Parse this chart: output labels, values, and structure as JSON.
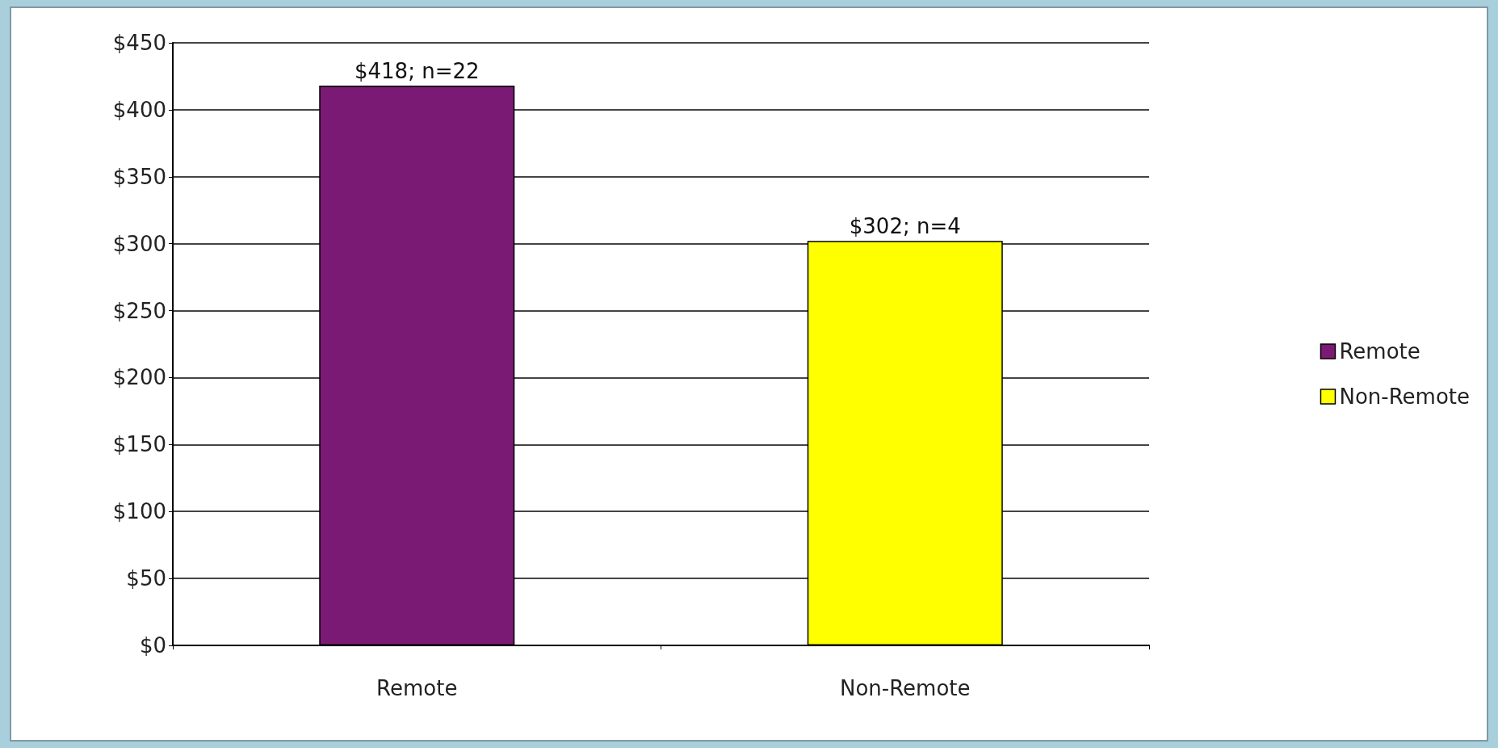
{
  "chart_data": {
    "type": "bar",
    "categories": [
      "Remote",
      "Non-Remote"
    ],
    "series": [
      {
        "name": "Remote",
        "color": "#7b1a74",
        "values": [
          418,
          null
        ],
        "value_labels": [
          "$418; n=22",
          null
        ]
      },
      {
        "name": "Non-Remote",
        "color": "#ffff00",
        "values": [
          null,
          302
        ],
        "value_labels": [
          null,
          "$302; n=4"
        ]
      }
    ],
    "ylim": [
      0,
      450
    ],
    "yticks": [
      {
        "value": 0,
        "label": "$0"
      },
      {
        "value": 50,
        "label": "$50"
      },
      {
        "value": 100,
        "label": "$100"
      },
      {
        "value": 150,
        "label": "$150"
      },
      {
        "value": 200,
        "label": "$200"
      },
      {
        "value": 250,
        "label": "$250"
      },
      {
        "value": 300,
        "label": "$300"
      },
      {
        "value": 350,
        "label": "$350"
      },
      {
        "value": 400,
        "label": "$400"
      },
      {
        "value": 450,
        "label": "$450"
      }
    ],
    "grid": "y",
    "legend": "right"
  }
}
